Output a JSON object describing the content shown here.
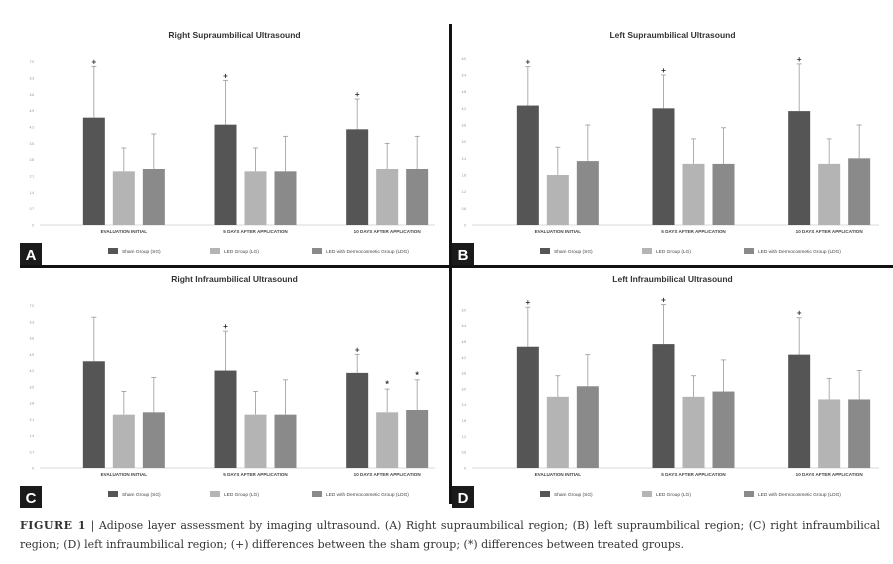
{
  "figure": {
    "caption_label": "FIGURE 1",
    "caption_separator": "|",
    "caption_text": "Adipose layer assessment by imaging ultrasound. (A) Right supraumbilical region; (B) left supraumbilical region; (C) right infraumbilical region; (D) left infraumbilical region; (+) differences between the sham group; (*) differences between treated groups."
  },
  "colors": {
    "sham": "#555555",
    "led": "#b4b4b4",
    "ledd": "#8a8a8a",
    "error": "#999999",
    "axis": "#cccccc",
    "label_box": "#1a1a1a"
  },
  "chart_data": [
    {
      "panel": "A",
      "type": "bar",
      "title": "Right Supraumbilical Ultrasound",
      "categories": [
        "EVALUATION INITIAL",
        "5 DAYS AFTER APPLICATION",
        "10 DAYS AFTER APPLICATION"
      ],
      "series": [
        {
          "name": "Sham Group (SG)",
          "values": [
            4.6,
            4.3,
            4.1
          ],
          "errors": [
            2.2,
            1.9,
            1.3
          ]
        },
        {
          "name": "LED Group (LG)",
          "values": [
            2.3,
            2.3,
            2.4
          ],
          "errors": [
            1.0,
            1.0,
            1.1
          ]
        },
        {
          "name": "LED with Dermocosmetic Group (LDG)",
          "values": [
            2.4,
            2.3,
            2.4
          ],
          "errors": [
            1.5,
            1.5,
            1.4
          ]
        }
      ],
      "markers": [
        {
          "category": 0,
          "series": 0,
          "symbol": "+"
        },
        {
          "category": 1,
          "series": 0,
          "symbol": "+"
        },
        {
          "category": 2,
          "series": 0,
          "symbol": "+"
        }
      ],
      "ylim": [
        0,
        7.5
      ],
      "yticks": [
        0,
        0.7,
        1.4,
        2.1,
        2.8,
        3.5,
        4.2,
        4.9,
        5.6,
        6.3,
        7.0
      ],
      "ytick_labels": [
        "0",
        "0.7",
        "1.4",
        "2.1",
        "2.8",
        "3.5",
        "4.2",
        "4.9",
        "5.6",
        "6.3",
        "7.0"
      ]
    },
    {
      "panel": "B",
      "type": "bar",
      "title": "Left Supraumbilical Ultrasound",
      "categories": [
        "EVALUATION INITIAL",
        "5 DAYS AFTER APPLICATION",
        "10 DAYS AFTER APPLICATION"
      ],
      "series": [
        {
          "name": "Sham Group (SG)",
          "values": [
            4.3,
            4.2,
            4.1
          ],
          "errors": [
            1.4,
            1.2,
            1.7
          ]
        },
        {
          "name": "LED Group (LG)",
          "values": [
            1.8,
            2.2,
            2.2
          ],
          "errors": [
            1.0,
            0.9,
            0.9
          ]
        },
        {
          "name": "LED with Dermocosmetic Group (LDG)",
          "values": [
            2.3,
            2.2,
            2.4
          ],
          "errors": [
            1.3,
            1.3,
            1.2
          ]
        }
      ],
      "markers": [
        {
          "category": 0,
          "series": 0,
          "symbol": "+"
        },
        {
          "category": 1,
          "series": 0,
          "symbol": "+"
        },
        {
          "category": 2,
          "series": 0,
          "symbol": "+"
        }
      ],
      "ylim": [
        0,
        6.3
      ],
      "yticks": [
        0,
        0.6,
        1.2,
        1.8,
        2.4,
        3.0,
        3.6,
        4.2,
        4.8,
        5.4,
        6.0
      ],
      "ytick_labels": [
        "0",
        "0.6",
        "1.2",
        "1.8",
        "2.4",
        "3.0",
        "3.6",
        "4.2",
        "4.8",
        "5.4",
        "6.0"
      ]
    },
    {
      "panel": "C",
      "type": "bar",
      "title": "Right Infraumbilical Ultrasound",
      "categories": [
        "EVALUATION INITIAL",
        "5 DAYS AFTER APPLICATION",
        "10 DAYS AFTER APPLICATION"
      ],
      "series": [
        {
          "name": "Sham Group (SG)",
          "values": [
            4.6,
            4.2,
            4.1
          ],
          "errors": [
            1.9,
            1.7,
            0.8
          ]
        },
        {
          "name": "LED Group (LG)",
          "values": [
            2.3,
            2.3,
            2.4
          ],
          "errors": [
            1.0,
            1.0,
            1.0
          ]
        },
        {
          "name": "LED with Dermocosmetic Group (LDG)",
          "values": [
            2.4,
            2.3,
            2.5
          ],
          "errors": [
            1.5,
            1.5,
            1.3
          ]
        }
      ],
      "markers": [
        {
          "category": 1,
          "series": 0,
          "symbol": "+"
        },
        {
          "category": 2,
          "series": 0,
          "symbol": "+"
        },
        {
          "category": 2,
          "series": 1,
          "symbol": "*"
        },
        {
          "category": 2,
          "series": 2,
          "symbol": "*"
        }
      ],
      "ylim": [
        0,
        7.5
      ],
      "yticks": [
        0,
        0.7,
        1.4,
        2.1,
        2.8,
        3.5,
        4.2,
        4.9,
        5.6,
        6.3,
        7.0
      ],
      "ytick_labels": [
        "0",
        "0.7",
        "1.4",
        "2.1",
        "2.8",
        "3.5",
        "4.2",
        "4.9",
        "5.6",
        "6.3",
        "7.0"
      ]
    },
    {
      "panel": "D",
      "type": "bar",
      "title": "Left Infraumbilical Ultrasound",
      "categories": [
        "EVALUATION INITIAL",
        "5 DAYS AFTER APPLICATION",
        "10 DAYS AFTER APPLICATION"
      ],
      "series": [
        {
          "name": "Sham Group (SG)",
          "values": [
            4.6,
            4.7,
            4.3
          ],
          "errors": [
            1.5,
            1.5,
            1.4
          ]
        },
        {
          "name": "LED Group (LG)",
          "values": [
            2.7,
            2.7,
            2.6
          ],
          "errors": [
            0.8,
            0.8,
            0.8
          ]
        },
        {
          "name": "LED with Dermocosmetic Group (LDG)",
          "values": [
            3.1,
            2.9,
            2.6
          ],
          "errors": [
            1.2,
            1.2,
            1.1
          ]
        }
      ],
      "markers": [
        {
          "category": 0,
          "series": 0,
          "symbol": "+"
        },
        {
          "category": 1,
          "series": 0,
          "symbol": "+"
        },
        {
          "category": 2,
          "series": 0,
          "symbol": "+"
        }
      ],
      "ylim": [
        0,
        6.6
      ],
      "yticks": [
        0,
        0.6,
        1.2,
        1.8,
        2.4,
        3.0,
        3.6,
        4.2,
        4.8,
        5.4,
        6.0
      ],
      "ytick_labels": [
        "0",
        "0.6",
        "1.2",
        "1.8",
        "2.4",
        "3.0",
        "3.6",
        "4.2",
        "4.8",
        "5.4",
        "6.0"
      ]
    }
  ]
}
